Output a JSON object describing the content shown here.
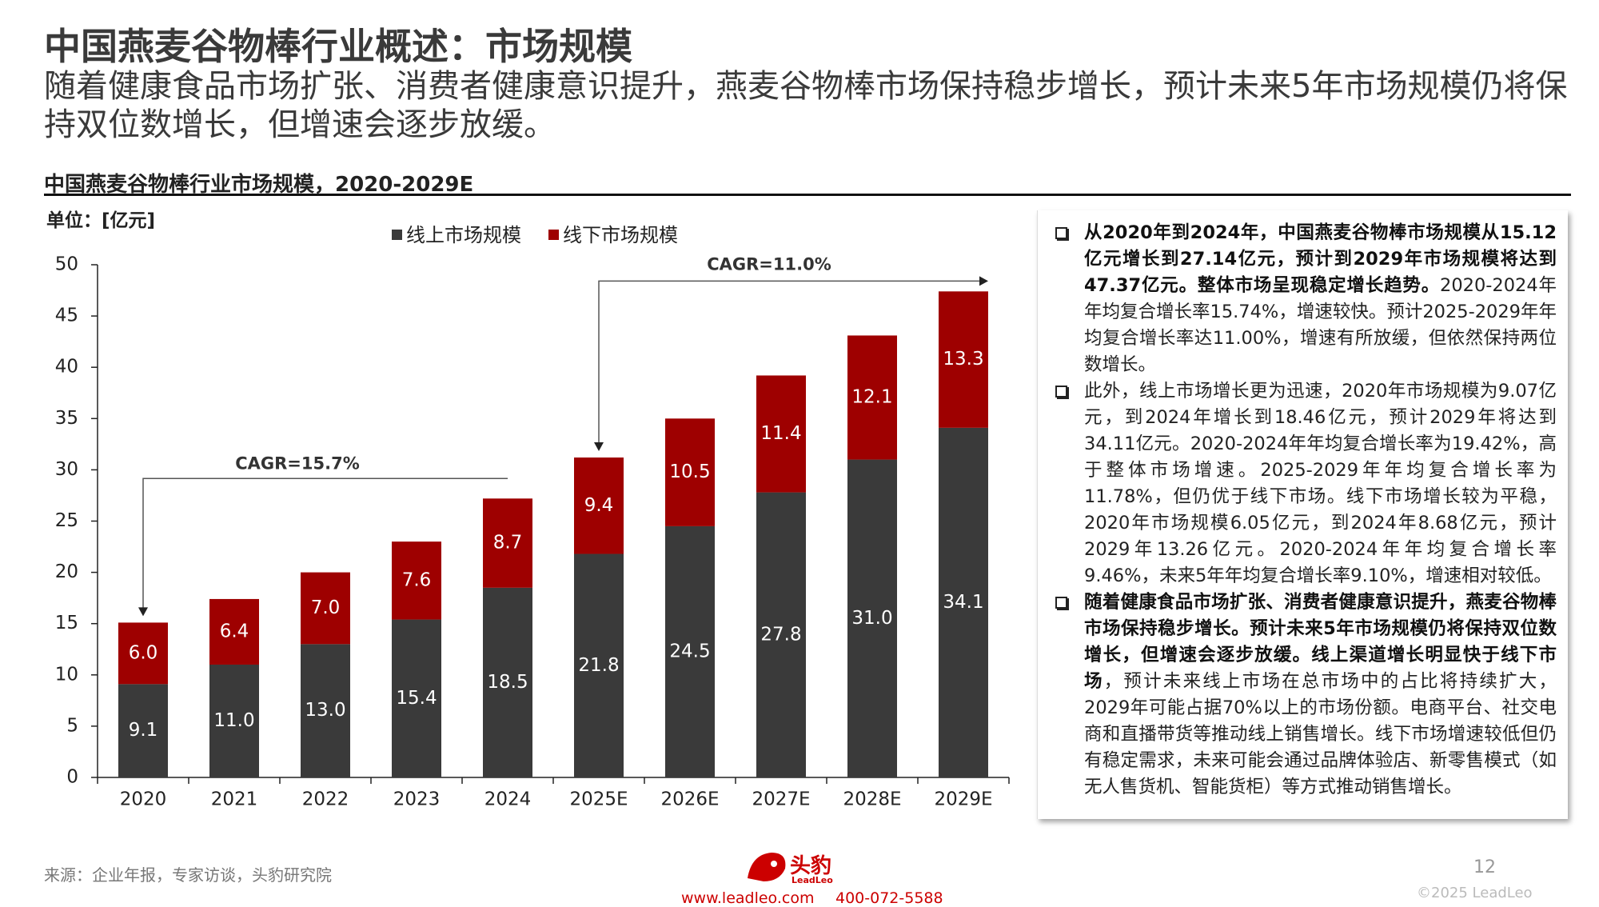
{
  "header": {
    "title": "中国燕麦谷物棒行业概述：市场规模",
    "subtitle": "随着健康食品市场扩张、消费者健康意识提升，燕麦谷物棒市场保持稳步增长，预计未来5年市场规模仍将保持双位数增长，但增速会逐步放缓。"
  },
  "chart_data": {
    "type": "stacked_bar",
    "title": "中国燕麦谷物棒行业市场规模，2020-2029E",
    "unit": "单位：[亿元]",
    "categories": [
      "2020",
      "2021",
      "2022",
      "2023",
      "2024",
      "2025E",
      "2026E",
      "2027E",
      "2028E",
      "2029E"
    ],
    "series": [
      {
        "name": "线上市场规模",
        "color": "#3a3a3a",
        "values": [
          9.1,
          11.0,
          13.0,
          15.4,
          18.5,
          21.8,
          24.5,
          27.8,
          31.0,
          34.1
        ],
        "value_labels": [
          "9.1",
          "11.0",
          "13.0",
          "15.4",
          "18.5",
          "21.8",
          "24.5",
          "27.8",
          "31.0",
          "34.1"
        ]
      },
      {
        "name": "线下市场规模",
        "color": "#9e0000",
        "values": [
          6.0,
          6.4,
          7.0,
          7.6,
          8.7,
          9.4,
          10.5,
          11.4,
          12.1,
          13.3
        ],
        "value_labels": [
          "6.0",
          "6.4",
          "7.0",
          "7.6",
          "8.7",
          "9.4",
          "10.5",
          "11.4",
          "12.1",
          "13.3"
        ]
      }
    ],
    "ylim": [
      0,
      50
    ],
    "yticks": [
      0,
      5,
      10,
      15,
      20,
      25,
      30,
      35,
      40,
      45,
      50
    ],
    "annotations": [
      "CAGR=15.7%",
      "CAGR=11.0%"
    ]
  },
  "notes": [
    {
      "bold": "从2020年到2024年，中国燕麦谷物棒市场规模从15.12亿元增长到27.14亿元，预计到2029年市场规模将达到47.37亿元。整体市场呈现稳定增长趋势。",
      "text": "2020-2024年年均复合增长率15.74%，增速较快。预计2025-2029年年均复合增长率达11.00%，增速有所放缓，但依然保持两位数增长。"
    },
    {
      "text": "此外，线上市场增长更为迅速，2020年市场规模为9.07亿元，到2024年增长到18.46亿元，预计2029年将达到34.11亿元。2020-2024年年均复合增长率为19.42%，高于整体市场增速。2025-2029年年均复合增长率为11.78%，但仍优于线下市场。线下市场增长较为平稳，2020年市场规模6.05亿元，到2024年8.68亿元，预计2029年13.26亿元。2020-2024年年均复合增长率9.46%，未来5年年均复合增长率9.10%，增速相对较低。"
    },
    {
      "bold": "随着健康食品市场扩张、消费者健康意识提升，燕麦谷物棒市场保持稳步增长。预计未来5年市场规模仍将保持双位数增长，但增速会逐步放缓。线上渠道增长明显快于线下市场",
      "text": "，预计未来线上市场在总市场中的占比将持续扩大，2029年可能占据70%以上的市场份额。电商平台、社交电商和直播带货等推动线上销售增长。线下市场增速较低但仍有稳定需求，未来可能会通过品牌体验店、新零售模式（如无人售货机、智能货柜）等方式推动销售增长。"
    }
  ],
  "footer": {
    "source": "来源：企业年报，专家访谈，头豹研究院",
    "brand": "头豹",
    "brand_en": "LeadLeo",
    "website": "www.leadleo.com",
    "phone": "400-072-5588",
    "page": "12",
    "copyright": "©2025 LeadLeo"
  }
}
